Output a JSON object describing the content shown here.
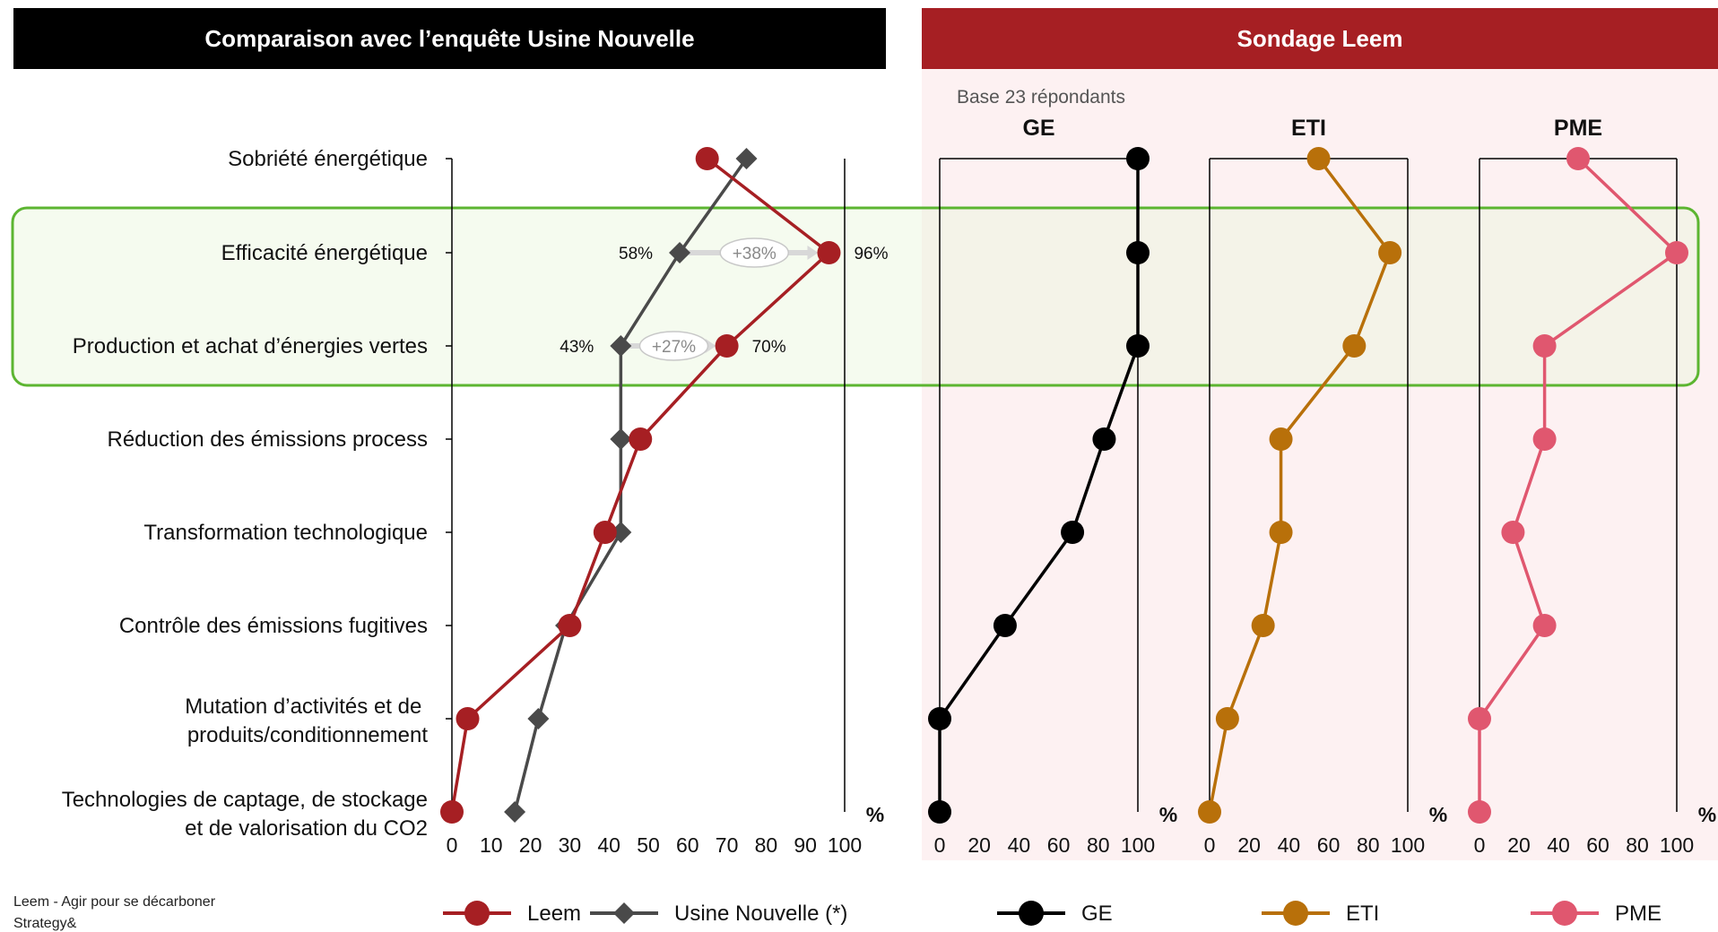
{
  "headers": {
    "left": "Comparaison avec l’enquête Usine Nouvelle",
    "right": "Sondage Leem"
  },
  "base_note": "Base 23 répondants",
  "percent_symbol": "%",
  "footer": {
    "line1": "Leem - Agir pour se décarboner",
    "line2": "Strategy&"
  },
  "colors": {
    "leem": "#a61f23",
    "usine": "#4a4a4a",
    "ge": "#000000",
    "eti": "#b8700a",
    "pme": "#e0576f",
    "highlight": "#5cb531",
    "left_header_bg": "#000000",
    "right_header_bg": "#a61f23"
  },
  "chart_data": [
    {
      "type": "line",
      "orientation": "horizontal-values",
      "title": "Comparaison avec l’enquête Usine Nouvelle",
      "xlabel": "%",
      "xlim": [
        0,
        100
      ],
      "xticks": [
        "0",
        "10",
        "20",
        "30",
        "40",
        "50",
        "60",
        "70",
        "80",
        "90",
        "100"
      ],
      "categories": [
        "Sobriété énergétique",
        "Efficacité énergétique",
        "Production et achat d’énergies vertes",
        "Réduction des émissions process",
        "Transformation technologique",
        "Contrôle des émissions fugitives",
        "Mutation d’activités et de produits/conditionnement",
        "Technologies de captage, de stockage et de valorisation du CO2"
      ],
      "series": [
        {
          "name": "Leem",
          "marker": "circle",
          "values": [
            65,
            96,
            70,
            48,
            39,
            30,
            4,
            0
          ]
        },
        {
          "name": "Usine Nouvelle (*)",
          "marker": "diamond",
          "values": [
            75,
            58,
            43,
            43,
            43,
            29,
            22,
            16
          ]
        }
      ],
      "annotations": [
        {
          "category": "Efficacité énergétique",
          "from_label": "58%",
          "to_label": "96%",
          "delta": "+38%"
        },
        {
          "category": "Production et achat d’énergies vertes",
          "from_label": "43%",
          "to_label": "70%",
          "delta": "+27%"
        }
      ],
      "highlighted_categories": [
        "Efficacité énergétique",
        "Production et achat d’énergies vertes"
      ],
      "legend": "bottom"
    },
    {
      "type": "line",
      "title": "GE",
      "xlabel": "%",
      "xlim": [
        0,
        100
      ],
      "xticks": [
        "0",
        "20",
        "40",
        "60",
        "80",
        "100"
      ],
      "series": [
        {
          "name": "GE",
          "marker": "circle",
          "values": [
            100,
            100,
            100,
            83,
            67,
            33,
            0,
            0
          ]
        }
      ]
    },
    {
      "type": "line",
      "title": "ETI",
      "xlabel": "%",
      "xlim": [
        0,
        100
      ],
      "xticks": [
        "0",
        "20",
        "40",
        "60",
        "80",
        "100"
      ],
      "series": [
        {
          "name": "ETI",
          "marker": "circle",
          "values": [
            55,
            91,
            73,
            36,
            36,
            27,
            9,
            0
          ]
        }
      ]
    },
    {
      "type": "line",
      "title": "PME",
      "xlabel": "%",
      "xlim": [
        0,
        100
      ],
      "xticks": [
        "0",
        "20",
        "40",
        "60",
        "80",
        "100"
      ],
      "series": [
        {
          "name": "PME",
          "marker": "circle",
          "values": [
            50,
            100,
            33,
            33,
            17,
            33,
            0,
            0
          ]
        }
      ]
    }
  ]
}
